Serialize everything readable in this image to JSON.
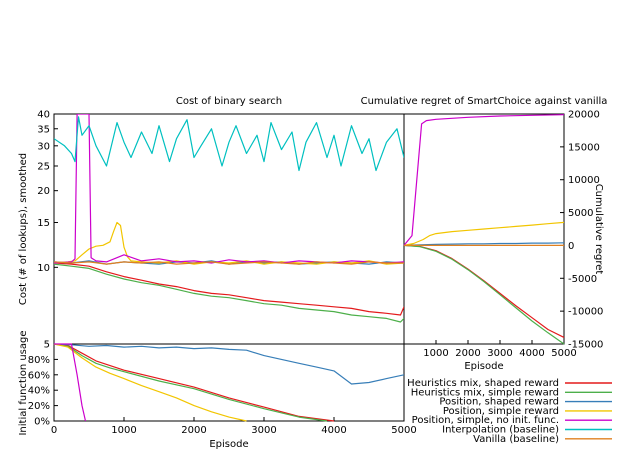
{
  "chart_data": [
    {
      "type": "line",
      "title": "Cost of binary search",
      "xlabel": "",
      "ylabel": "Cost (# of lookups), smoothed",
      "xlim": [
        0,
        5000
      ],
      "ylim": [
        5,
        40
      ],
      "yscale": "log",
      "yticks": [
        "5",
        "10",
        "15",
        "20",
        "25",
        "30",
        "35",
        "40"
      ],
      "grid": false,
      "series": [
        {
          "name": "Heuristics mix, shaped reward",
          "color": "#e41a1c",
          "x": [
            0,
            250,
            500,
            750,
            1000,
            1250,
            1500,
            1750,
            2000,
            2250,
            2500,
            2750,
            3000,
            3250,
            3500,
            3750,
            4000,
            4250,
            4500,
            4750,
            4950,
            5000
          ],
          "y": [
            10.4,
            10.3,
            10.1,
            9.6,
            9.2,
            8.9,
            8.6,
            8.4,
            8.1,
            7.9,
            7.8,
            7.6,
            7.4,
            7.3,
            7.2,
            7.1,
            7.0,
            6.9,
            6.7,
            6.6,
            6.5,
            7.0
          ]
        },
        {
          "name": "Heuristics mix, simple reward",
          "color": "#4daf4a",
          "x": [
            0,
            250,
            500,
            750,
            1000,
            1250,
            1500,
            1750,
            2000,
            2250,
            2500,
            2750,
            3000,
            3250,
            3500,
            3750,
            4000,
            4250,
            4500,
            4750,
            4950,
            5000
          ],
          "y": [
            10.3,
            10.1,
            9.9,
            9.4,
            9.0,
            8.7,
            8.5,
            8.2,
            7.9,
            7.7,
            7.6,
            7.4,
            7.2,
            7.1,
            6.9,
            6.8,
            6.7,
            6.5,
            6.4,
            6.3,
            6.1,
            6.3
          ]
        },
        {
          "name": "Position, shaped reward",
          "color": "#377eb8",
          "x": [
            0,
            250,
            500,
            750,
            1000,
            1250,
            1500,
            1750,
            2000,
            2250,
            2500,
            2750,
            3000,
            3250,
            3500,
            3750,
            4000,
            4250,
            4500,
            4750,
            5000
          ],
          "y": [
            10.5,
            10.4,
            10.6,
            10.3,
            10.5,
            10.4,
            10.3,
            10.5,
            10.4,
            10.6,
            10.3,
            10.5,
            10.4,
            10.5,
            10.3,
            10.4,
            10.5,
            10.4,
            10.3,
            10.5,
            10.4
          ]
        },
        {
          "name": "Position, simple reward",
          "color": "#f2c500",
          "x": [
            0,
            200,
            300,
            400,
            500,
            600,
            700,
            800,
            850,
            900,
            950,
            1000,
            1050,
            1100,
            1250,
            1500,
            1750,
            2000,
            2250,
            2500,
            2750,
            3000,
            3250,
            3500,
            3750,
            4000,
            4250,
            4500,
            4750,
            5000
          ],
          "y": [
            10.4,
            10.5,
            10.6,
            11.2,
            11.8,
            12.1,
            12.2,
            12.6,
            13.8,
            15.0,
            14.6,
            12.0,
            11.0,
            10.6,
            10.5,
            10.4,
            10.6,
            10.3,
            10.5,
            10.4,
            10.6,
            10.3,
            10.5,
            10.4,
            10.3,
            10.5,
            10.4,
            10.6,
            10.3,
            10.4
          ]
        },
        {
          "name": "Position, simple, no init. func.",
          "color": "#cc00cc",
          "x": [
            0,
            250,
            300,
            330,
            500,
            530,
            600,
            750,
            1000,
            1250,
            1500,
            1750,
            2000,
            2250,
            2500,
            2750,
            3000,
            3250,
            3500,
            3750,
            4000,
            4250,
            4500,
            4750,
            5000
          ],
          "y": [
            10.4,
            10.5,
            10.8,
            40,
            40,
            10.9,
            10.6,
            10.5,
            11.2,
            10.6,
            10.8,
            10.5,
            10.6,
            10.4,
            10.7,
            10.5,
            10.6,
            10.4,
            10.6,
            10.5,
            10.4,
            10.6,
            10.5,
            10.4,
            10.5
          ]
        },
        {
          "name": "Interpolation (baseline)",
          "color": "#00c0c0",
          "x": [
            0,
            150,
            250,
            300,
            350,
            400,
            500,
            600,
            750,
            900,
            1000,
            1100,
            1250,
            1400,
            1500,
            1650,
            1750,
            1900,
            2000,
            2100,
            2250,
            2400,
            2500,
            2600,
            2750,
            2900,
            3000,
            3100,
            3250,
            3400,
            3500,
            3600,
            3750,
            3900,
            4000,
            4100,
            4250,
            4400,
            4500,
            4600,
            4750,
            4900,
            5000
          ],
          "y": [
            32,
            30,
            28,
            26,
            39,
            33,
            36,
            30,
            25,
            37,
            31,
            27,
            34,
            28,
            36,
            26,
            32,
            38,
            27,
            30,
            35,
            25,
            31,
            36,
            28,
            33,
            26,
            37,
            29,
            34,
            24,
            31,
            37,
            27,
            33,
            25,
            36,
            28,
            32,
            24,
            31,
            35,
            27
          ]
        },
        {
          "name": "Vanilla (baseline)",
          "color": "#e08020",
          "x": [
            0,
            250,
            500,
            750,
            1000,
            1250,
            1500,
            1750,
            2000,
            2250,
            2500,
            2750,
            3000,
            3250,
            3500,
            3750,
            4000,
            4250,
            4500,
            4750,
            5000
          ],
          "y": [
            10.5,
            10.4,
            10.5,
            10.3,
            10.5,
            10.4,
            10.5,
            10.3,
            10.4,
            10.5,
            10.3,
            10.4,
            10.5,
            10.4,
            10.3,
            10.5,
            10.4,
            10.3,
            10.5,
            10.4,
            10.4
          ]
        }
      ]
    },
    {
      "type": "line",
      "title": "Cumulative regret of SmartChoice against vanilla",
      "xlabel": "Episode",
      "ylabel": "Cumulative regret",
      "xlim": [
        0,
        5000
      ],
      "ylim": [
        -15000,
        20000
      ],
      "xticks": [
        "1000",
        "2000",
        "3000",
        "4000",
        "5000"
      ],
      "yticks": [
        "-15000",
        "-10000",
        "-5000",
        "0",
        "5000",
        "10000",
        "15000",
        "20000"
      ],
      "y_axis_side": "right",
      "series": [
        {
          "name": "Heuristics mix, shaped reward",
          "color": "#e41a1c",
          "x": [
            0,
            500,
            1000,
            1500,
            2000,
            2500,
            3000,
            3500,
            4000,
            4500,
            5000
          ],
          "y": [
            0,
            -150,
            -800,
            -2000,
            -3600,
            -5400,
            -7300,
            -9200,
            -11000,
            -12800,
            -14000
          ]
        },
        {
          "name": "Heuristics mix, simple reward",
          "color": "#4daf4a",
          "x": [
            0,
            500,
            1000,
            1500,
            2000,
            2500,
            3000,
            3500,
            4000,
            4500,
            5000
          ],
          "y": [
            0,
            -200,
            -900,
            -2100,
            -3700,
            -5500,
            -7500,
            -9500,
            -11500,
            -13300,
            -15000
          ]
        },
        {
          "name": "Position, shaped reward",
          "color": "#377eb8",
          "x": [
            0,
            500,
            1000,
            1500,
            2000,
            2500,
            3000,
            3500,
            4000,
            4500,
            5000
          ],
          "y": [
            0,
            100,
            150,
            200,
            250,
            250,
            300,
            300,
            350,
            350,
            400
          ]
        },
        {
          "name": "Position, simple reward",
          "color": "#f2c500",
          "x": [
            0,
            300,
            600,
            800,
            1000,
            1500,
            2000,
            2500,
            3000,
            3500,
            4000,
            4500,
            5000
          ],
          "y": [
            0,
            300,
            900,
            1500,
            1800,
            2100,
            2300,
            2500,
            2700,
            2900,
            3100,
            3300,
            3500
          ]
        },
        {
          "name": "Position, simple, no init. func.",
          "color": "#cc00cc",
          "x": [
            0,
            250,
            550,
            700,
            1000,
            2000,
            3000,
            4000,
            5000
          ],
          "y": [
            0,
            1500,
            18500,
            19000,
            19200,
            19500,
            19700,
            19800,
            19900
          ]
        },
        {
          "name": "Interpolation (baseline)",
          "color": "#00c0c0",
          "x": [],
          "y": []
        },
        {
          "name": "Vanilla (baseline)",
          "color": "#e08020",
          "x": [
            0,
            1000,
            2000,
            3000,
            4000,
            5000
          ],
          "y": [
            0,
            0,
            0,
            0,
            0,
            0
          ]
        }
      ]
    },
    {
      "type": "line",
      "title": "",
      "xlabel": "Episode",
      "ylabel": "Initial function usage",
      "xlim": [
        0,
        5000
      ],
      "ylim": [
        0,
        100
      ],
      "xticks": [
        "0",
        "1000",
        "2000",
        "3000",
        "4000",
        "5000"
      ],
      "yticks": [
        "0%",
        "20%",
        "40%",
        "60%",
        "80%"
      ],
      "series": [
        {
          "name": "Heuristics mix, shaped reward",
          "color": "#e41a1c",
          "x": [
            0,
            200,
            400,
            600,
            800,
            1000,
            1500,
            2000,
            2500,
            3000,
            3500,
            4000
          ],
          "y": [
            100,
            98,
            88,
            78,
            72,
            66,
            55,
            44,
            30,
            18,
            6,
            0
          ]
        },
        {
          "name": "Heuristics mix, simple reward",
          "color": "#4daf4a",
          "x": [
            0,
            200,
            400,
            600,
            800,
            1000,
            1500,
            2000,
            2500,
            3000,
            3500,
            3900
          ],
          "y": [
            100,
            97,
            85,
            75,
            69,
            64,
            52,
            42,
            28,
            16,
            5,
            0
          ]
        },
        {
          "name": "Position, shaped reward",
          "color": "#377eb8",
          "x": [
            0,
            250,
            500,
            750,
            1000,
            1250,
            1500,
            1750,
            2000,
            2250,
            2500,
            2750,
            3000,
            3250,
            3500,
            3750,
            4000,
            4250,
            4500,
            4750,
            5000
          ],
          "y": [
            100,
            99,
            97,
            98,
            96,
            97,
            95,
            96,
            94,
            95,
            93,
            92,
            85,
            80,
            75,
            70,
            65,
            48,
            50,
            55,
            60
          ]
        },
        {
          "name": "Position, simple reward",
          "color": "#f2c500",
          "x": [
            0,
            200,
            400,
            600,
            800,
            1000,
            1250,
            1500,
            1750,
            2000,
            2250,
            2500,
            2750
          ],
          "y": [
            100,
            96,
            82,
            70,
            62,
            55,
            46,
            38,
            30,
            20,
            12,
            5,
            0
          ]
        },
        {
          "name": "Position, simple, no init. func.",
          "color": "#cc00cc",
          "x": [
            0,
            250,
            330,
            400,
            450
          ],
          "y": [
            100,
            100,
            60,
            20,
            0
          ]
        }
      ]
    }
  ],
  "legend": {
    "placement": "bottom-right",
    "entries": [
      {
        "label": "Heuristics mix, shaped reward",
        "color": "#e41a1c"
      },
      {
        "label": "Heuristics mix, simple reward",
        "color": "#4daf4a"
      },
      {
        "label": "Position, shaped reward",
        "color": "#377eb8"
      },
      {
        "label": "Position, simple reward",
        "color": "#f2c500"
      },
      {
        "label": "Position, simple, no init. func.",
        "color": "#cc00cc"
      },
      {
        "label": "Interpolation (baseline)",
        "color": "#00c0c0"
      },
      {
        "label": "Vanilla (baseline)",
        "color": "#e08020"
      }
    ]
  }
}
